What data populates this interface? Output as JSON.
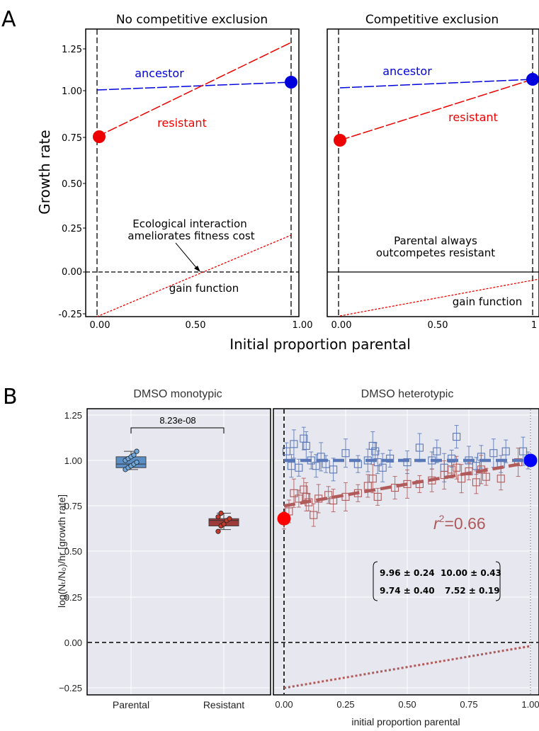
{
  "panel_labels": {
    "a": "A",
    "b": "B"
  },
  "panelA": {
    "ylabel": "Growth rate",
    "xlabel": "Initial proportion parental",
    "yticks": [
      "1.25",
      "1.00",
      "0.75",
      "0.50",
      "0.25",
      "0.00",
      "-0.25"
    ],
    "left": {
      "title": "No competitive exclusion",
      "xticks": [
        "0.00",
        "0.50",
        "1.00"
      ],
      "ancestor_label": "ancestor",
      "resistant_label": "resistant",
      "annotation_line1": "Ecological interaction",
      "annotation_line2": "ameliorates fitness cost",
      "gain_label": "gain function"
    },
    "right": {
      "title": "Competitive exclusion",
      "xticks": [
        "0.00",
        "0.50",
        "1"
      ],
      "ancestor_label": "ancestor",
      "resistant_label": "resistant",
      "annotation_line1": "Parental always",
      "annotation_line2": "outcompetes resistant",
      "gain_label": "gain function"
    }
  },
  "panelB": {
    "ylabel": "log(Nₜ/N₀)/hr [growth rate]",
    "xlabel": "initial proportion parental",
    "yticks": [
      "1.25",
      "1.00",
      "0.75",
      "0.50",
      "0.25",
      "0.00",
      "−0.25"
    ],
    "left": {
      "title": "DMSO monotypic",
      "categories": [
        "Parental",
        "Resistant"
      ],
      "pvalue": "8.23e-08"
    },
    "right": {
      "title": "DMSO heterotypic",
      "xticks": [
        "0.00",
        "0.25",
        "0.50",
        "0.75",
        "1.00"
      ],
      "r2_prefix": "r",
      "r2_sup": "2",
      "r2_value": "=0.66",
      "table": [
        [
          "9.96 ± 0.24",
          "10.00 ± 0.43"
        ],
        [
          "9.74 ± 0.40",
          "7.52 ± 0.19"
        ]
      ]
    }
  },
  "colors": {
    "ancestor": "#0000dd",
    "resistant": "#ee0000",
    "parental_box": "#5b8ec4",
    "resistant_box": "#9e3a3a",
    "hetero_blue": "#5a78b8",
    "hetero_red": "#b05a5a",
    "panel_bg": "#e6e7ef"
  },
  "chart_data": [
    {
      "type": "line",
      "title": "No competitive exclusion",
      "xlabel": "Initial proportion parental",
      "ylabel": "Growth rate",
      "xlim": [
        -0.02,
        1.02
      ],
      "ylim": [
        -0.27,
        1.35
      ],
      "series": [
        {
          "name": "ancestor",
          "x": [
            0.0,
            1.0
          ],
          "y": [
            1.0,
            1.04
          ]
        },
        {
          "name": "resistant",
          "x": [
            0.0,
            1.0
          ],
          "y": [
            0.76,
            1.28
          ]
        },
        {
          "name": "gain function",
          "x": [
            0.0,
            1.0
          ],
          "y": [
            -0.27,
            0.2
          ]
        }
      ],
      "points": [
        {
          "series": "resistant",
          "x": 0.0,
          "y": 0.76
        },
        {
          "series": "ancestor",
          "x": 1.0,
          "y": 1.04
        }
      ]
    },
    {
      "type": "line",
      "title": "Competitive exclusion",
      "xlabel": "Initial proportion parental",
      "ylabel": "Growth rate",
      "xlim": [
        -0.02,
        1.02
      ],
      "ylim": [
        -0.27,
        1.35
      ],
      "series": [
        {
          "name": "ancestor",
          "x": [
            0.0,
            1.0
          ],
          "y": [
            1.01,
            1.05
          ]
        },
        {
          "name": "resistant",
          "x": [
            0.0,
            1.0
          ],
          "y": [
            0.74,
            1.05
          ]
        },
        {
          "name": "gain function",
          "x": [
            0.0,
            1.0
          ],
          "y": [
            -0.27,
            -0.03
          ]
        }
      ],
      "points": [
        {
          "series": "resistant",
          "x": 0.0,
          "y": 0.74
        },
        {
          "series": "ancestor",
          "x": 1.0,
          "y": 1.05
        }
      ]
    },
    {
      "type": "box",
      "title": "DMSO monotypic",
      "categories": [
        "Parental",
        "Resistant"
      ],
      "ylabel": "log(Nt/N0)/hr [growth rate]",
      "ylim": [
        -0.3,
        1.3
      ],
      "boxes": [
        {
          "category": "Parental",
          "whisker_low": 0.95,
          "q1": 0.96,
          "median": 0.98,
          "q3": 1.02,
          "whisker_high": 1.05,
          "points": [
            0.95,
            0.96,
            0.97,
            0.98,
            0.99,
            1.0,
            1.01,
            1.02,
            1.03,
            1.05
          ]
        },
        {
          "category": "Resistant",
          "whisker_low": 0.62,
          "q1": 0.64,
          "median": 0.67,
          "q3": 0.68,
          "whisker_high": 0.71,
          "points": [
            0.61,
            0.64,
            0.65,
            0.67,
            0.68,
            0.69,
            0.71
          ]
        }
      ],
      "pvalue": "8.23e-08"
    },
    {
      "type": "scatter",
      "title": "DMSO heterotypic",
      "xlabel": "initial proportion parental",
      "xlim": [
        -0.04,
        1.04
      ],
      "ylim": [
        -0.3,
        1.3
      ],
      "series": [
        {
          "name": "ancestor",
          "fit": [
            1.0,
            1.0
          ],
          "points": [
            [
              0.01,
              1.05
            ],
            [
              0.03,
              0.97
            ],
            [
              0.04,
              1.09
            ],
            [
              0.06,
              0.96
            ],
            [
              0.08,
              1.12
            ],
            [
              0.09,
              1.08
            ],
            [
              0.11,
              1.0
            ],
            [
              0.13,
              0.97
            ],
            [
              0.15,
              1.02
            ],
            [
              0.17,
              0.98
            ],
            [
              0.2,
              0.95
            ],
            [
              0.25,
              1.04
            ],
            [
              0.3,
              0.98
            ],
            [
              0.34,
              1.0
            ],
            [
              0.36,
              1.08
            ],
            [
              0.37,
              1.05
            ],
            [
              0.38,
              0.99
            ],
            [
              0.4,
              0.96
            ],
            [
              0.43,
              1.01
            ],
            [
              0.5,
              0.99
            ],
            [
              0.55,
              1.07
            ],
            [
              0.6,
              1.0
            ],
            [
              0.62,
              1.05
            ],
            [
              0.65,
              0.96
            ],
            [
              0.68,
              1.01
            ],
            [
              0.7,
              1.13
            ],
            [
              0.75,
              1.0
            ],
            [
              0.78,
              0.97
            ],
            [
              0.8,
              1.02
            ],
            [
              0.85,
              1.04
            ],
            [
              0.88,
              0.98
            ],
            [
              0.9,
              1.05
            ],
            [
              0.97,
              1.05
            ],
            [
              0.99,
              1.0
            ]
          ]
        },
        {
          "name": "resistant",
          "fit": [
            0.75,
            0.99
          ],
          "points": [
            [
              0.0,
              0.67
            ],
            [
              0.02,
              0.72
            ],
            [
              0.04,
              0.82
            ],
            [
              0.06,
              0.79
            ],
            [
              0.08,
              0.84
            ],
            [
              0.09,
              0.8
            ],
            [
              0.1,
              0.77
            ],
            [
              0.12,
              0.7
            ],
            [
              0.14,
              0.79
            ],
            [
              0.18,
              0.81
            ],
            [
              0.2,
              0.78
            ],
            [
              0.25,
              0.8
            ],
            [
              0.3,
              0.82
            ],
            [
              0.34,
              0.86
            ],
            [
              0.36,
              0.9
            ],
            [
              0.38,
              0.8
            ],
            [
              0.45,
              0.85
            ],
            [
              0.5,
              0.87
            ],
            [
              0.55,
              0.87
            ],
            [
              0.6,
              0.89
            ],
            [
              0.65,
              0.92
            ],
            [
              0.68,
              0.95
            ],
            [
              0.7,
              0.96
            ],
            [
              0.72,
              0.9
            ],
            [
              0.75,
              0.94
            ],
            [
              0.78,
              0.88
            ],
            [
              0.8,
              0.95
            ],
            [
              0.82,
              0.91
            ],
            [
              0.88,
              0.9
            ],
            [
              0.95,
              0.99
            ]
          ]
        }
      ],
      "endpoints": [
        {
          "series": "resistant",
          "x": 0.0,
          "y": 0.68
        },
        {
          "series": "ancestor",
          "x": 1.0,
          "y": 1.0
        }
      ],
      "gain_function": {
        "x": [
          0.0,
          1.0
        ],
        "y": [
          -0.25,
          -0.02
        ]
      },
      "r2": 0.66
    }
  ]
}
